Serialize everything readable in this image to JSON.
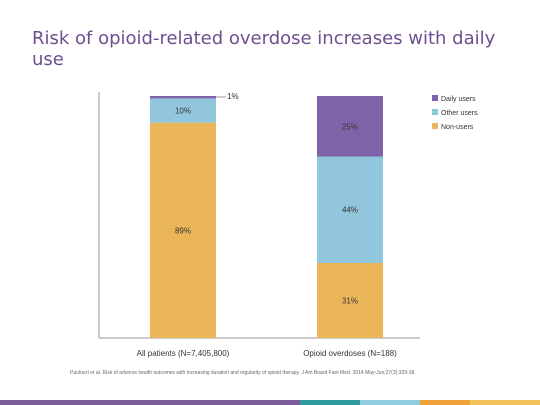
{
  "slide": {
    "title": "Risk of opioid-related overdose increases with daily use",
    "citation": "Paulozzi et al. Risk of adverse health outcomes with increasing duration and regularity of opioid therapy. J Am Board Fam Med. 2014 May-Jun;27(3):329-38."
  },
  "colors": {
    "title": "#6d4f8f",
    "daily": "#7f63a8",
    "other": "#92c6dc",
    "non": "#ebb55a",
    "footer": [
      "#7a5c9a",
      "#7a5c9a",
      "#2f9a9f",
      "#8fcde0",
      "#f0a23a",
      "#f3c25a"
    ]
  },
  "chart_data": {
    "type": "bar",
    "stacked": true,
    "categories": [
      "All patients (N=7,405,800)",
      "Opioid overdoses (N=188)"
    ],
    "series": [
      {
        "name": "Non-users",
        "values": [
          89,
          31
        ],
        "labels": [
          "89%",
          "31%"
        ],
        "color": "#ebb55a"
      },
      {
        "name": "Other users",
        "values": [
          10,
          44
        ],
        "labels": [
          "10%",
          "44%"
        ],
        "color": "#92c6dc"
      },
      {
        "name": "Daily users",
        "values": [
          1,
          25
        ],
        "labels": [
          "1%",
          "25%"
        ],
        "color": "#7f63a8"
      }
    ],
    "legend_order": [
      "Daily users",
      "Other users",
      "Non-users"
    ],
    "legend_position": "top-right",
    "ylim": [
      0,
      100
    ],
    "grid": false
  }
}
